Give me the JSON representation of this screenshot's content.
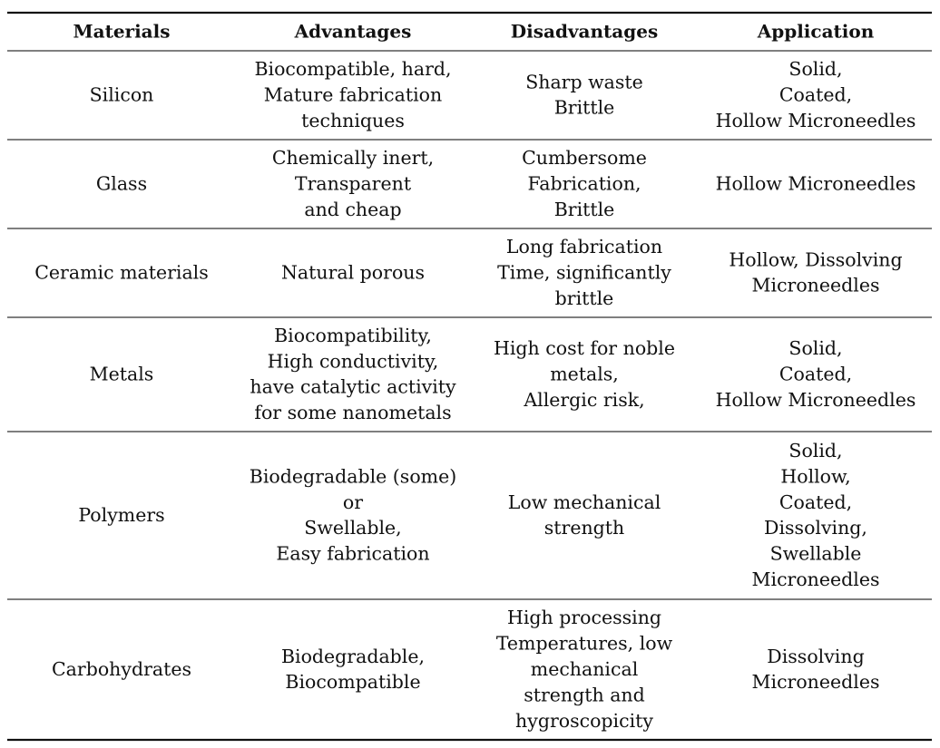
{
  "table": {
    "header": [
      "Materials",
      "Advantages",
      "Disadvantages",
      "Application"
    ],
    "rows": [
      [
        [
          "Silicon"
        ],
        [
          "Biocompatible, hard,",
          "Mature fabrication",
          "techniques"
        ],
        [
          "Sharp waste",
          "Brittle"
        ],
        [
          "Solid,",
          "Coated,",
          "Hollow Microneedles"
        ]
      ],
      [
        [
          "Glass"
        ],
        [
          "Chemically inert,",
          "Transparent",
          "and cheap"
        ],
        [
          "Cumbersome",
          "Fabrication,",
          "Brittle"
        ],
        [
          "Hollow Microneedles"
        ]
      ],
      [
        [
          "Ceramic materials"
        ],
        [
          "Natural porous"
        ],
        [
          "Long fabrication",
          "Time, significantly",
          "brittle"
        ],
        [
          "Hollow, Dissolving",
          "Microneedles"
        ]
      ],
      [
        [
          "Metals"
        ],
        [
          "Biocompatibility,",
          "High conductivity,",
          "have catalytic activity",
          "for some nanometals"
        ],
        [
          "High cost for noble",
          "metals,",
          "Allergic risk,"
        ],
        [
          "Solid,",
          "Coated,",
          "Hollow Microneedles"
        ]
      ],
      [
        [
          "Polymers"
        ],
        [
          "Biodegradable (some)",
          "or",
          "Swellable,",
          "Easy fabrication"
        ],
        [
          "Low mechanical",
          "strength"
        ],
        [
          "Solid,",
          "Hollow,",
          "Coated,",
          "Dissolving,",
          "Swellable",
          "Microneedles"
        ]
      ],
      [
        [
          "Carbohydrates"
        ],
        [
          "Biodegradable,",
          "Biocompatible"
        ],
        [
          "High processing",
          "Temperatures, low",
          "mechanical",
          "strength and",
          "hygroscopicity"
        ],
        [
          "Dissolving",
          "Microneedles"
        ]
      ]
    ]
  }
}
